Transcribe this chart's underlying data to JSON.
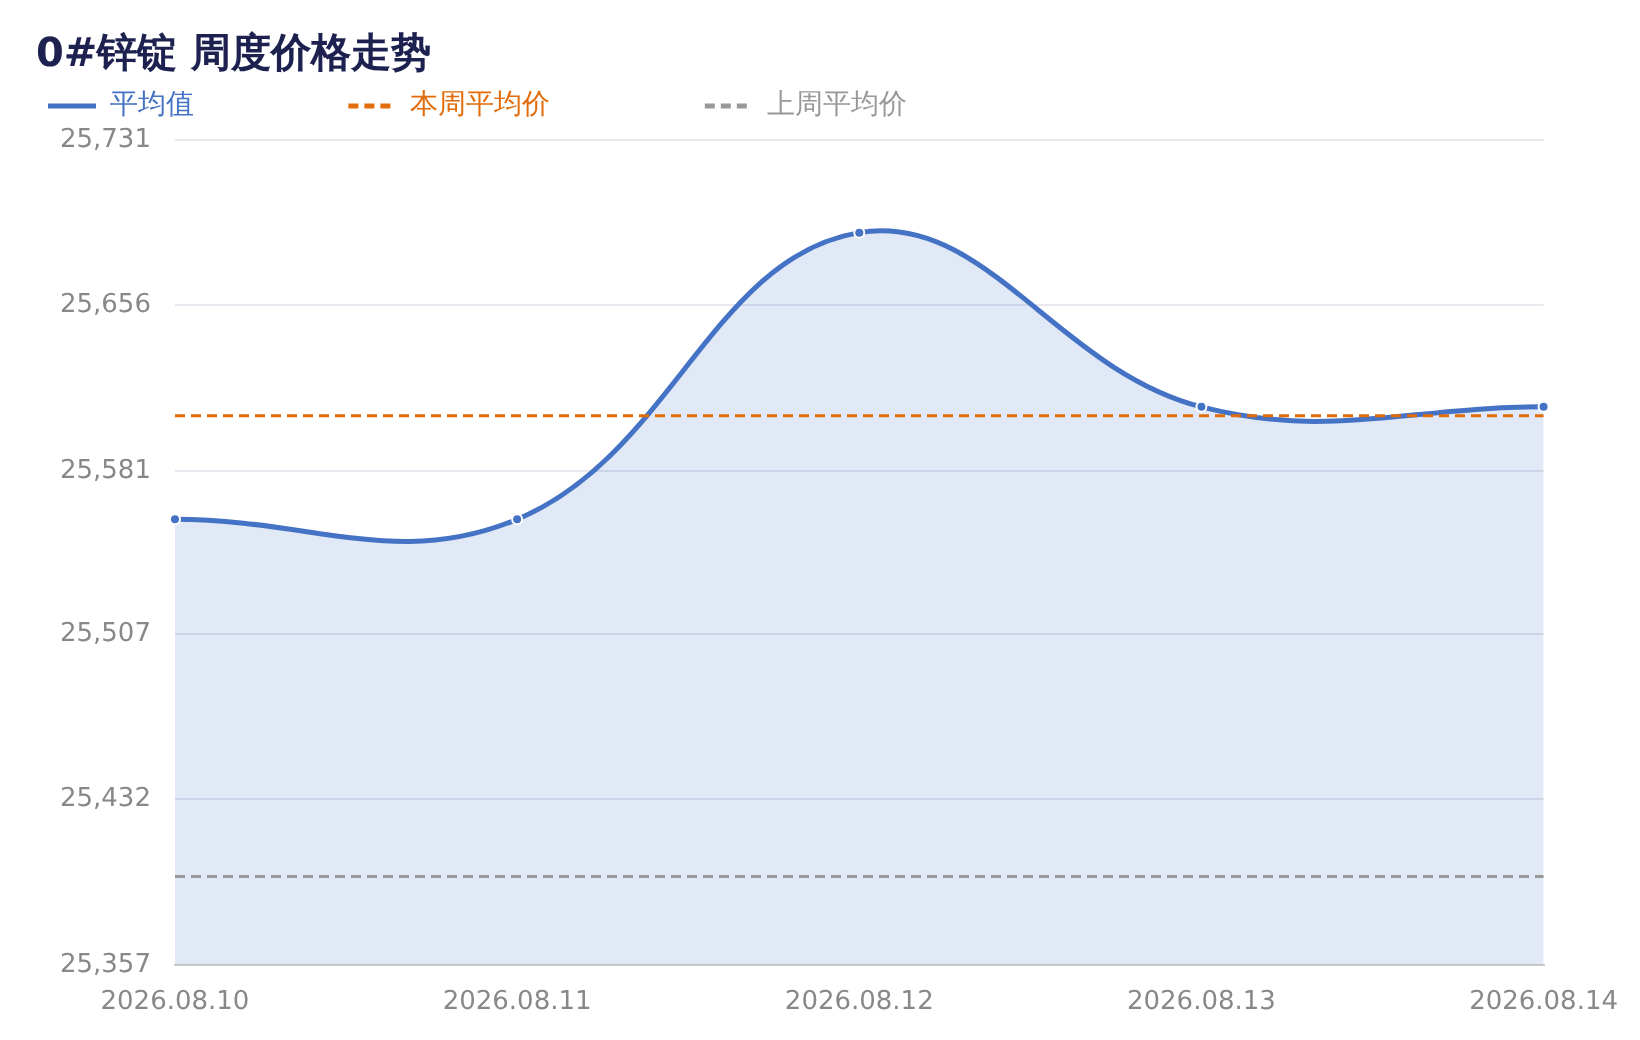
{
  "chart_data": {
    "type": "area",
    "title": "0#锌锭 周度价格走势",
    "categories": [
      "2026.08.10",
      "2026.08.11",
      "2026.08.12",
      "2026.08.13",
      "2026.08.14"
    ],
    "series": [
      {
        "name": "平均值",
        "color": "#4472c4",
        "values": [
          25559,
          25559,
          25689,
          25610,
          25610
        ]
      }
    ],
    "ref_lines": [
      {
        "axis": "y",
        "value": 25606,
        "label": "本周平均价",
        "color": "#e36c0a",
        "line_style": "dashed"
      },
      {
        "axis": "y",
        "value": 25397,
        "label": "上周平均价",
        "color": "#999999",
        "line_style": "dashed"
      }
    ],
    "ylim": [
      25357,
      25731
    ],
    "yticks": [
      {
        "value": 25357,
        "label": "25,357"
      },
      {
        "value": 25432,
        "label": "25,432"
      },
      {
        "value": 25507,
        "label": "25,507"
      },
      {
        "value": 25581,
        "label": "25,581"
      },
      {
        "value": 25656,
        "label": "25,656"
      },
      {
        "value": 25731,
        "label": "25,731"
      }
    ],
    "grid": "y",
    "legend": "top left",
    "marker": "circle"
  }
}
